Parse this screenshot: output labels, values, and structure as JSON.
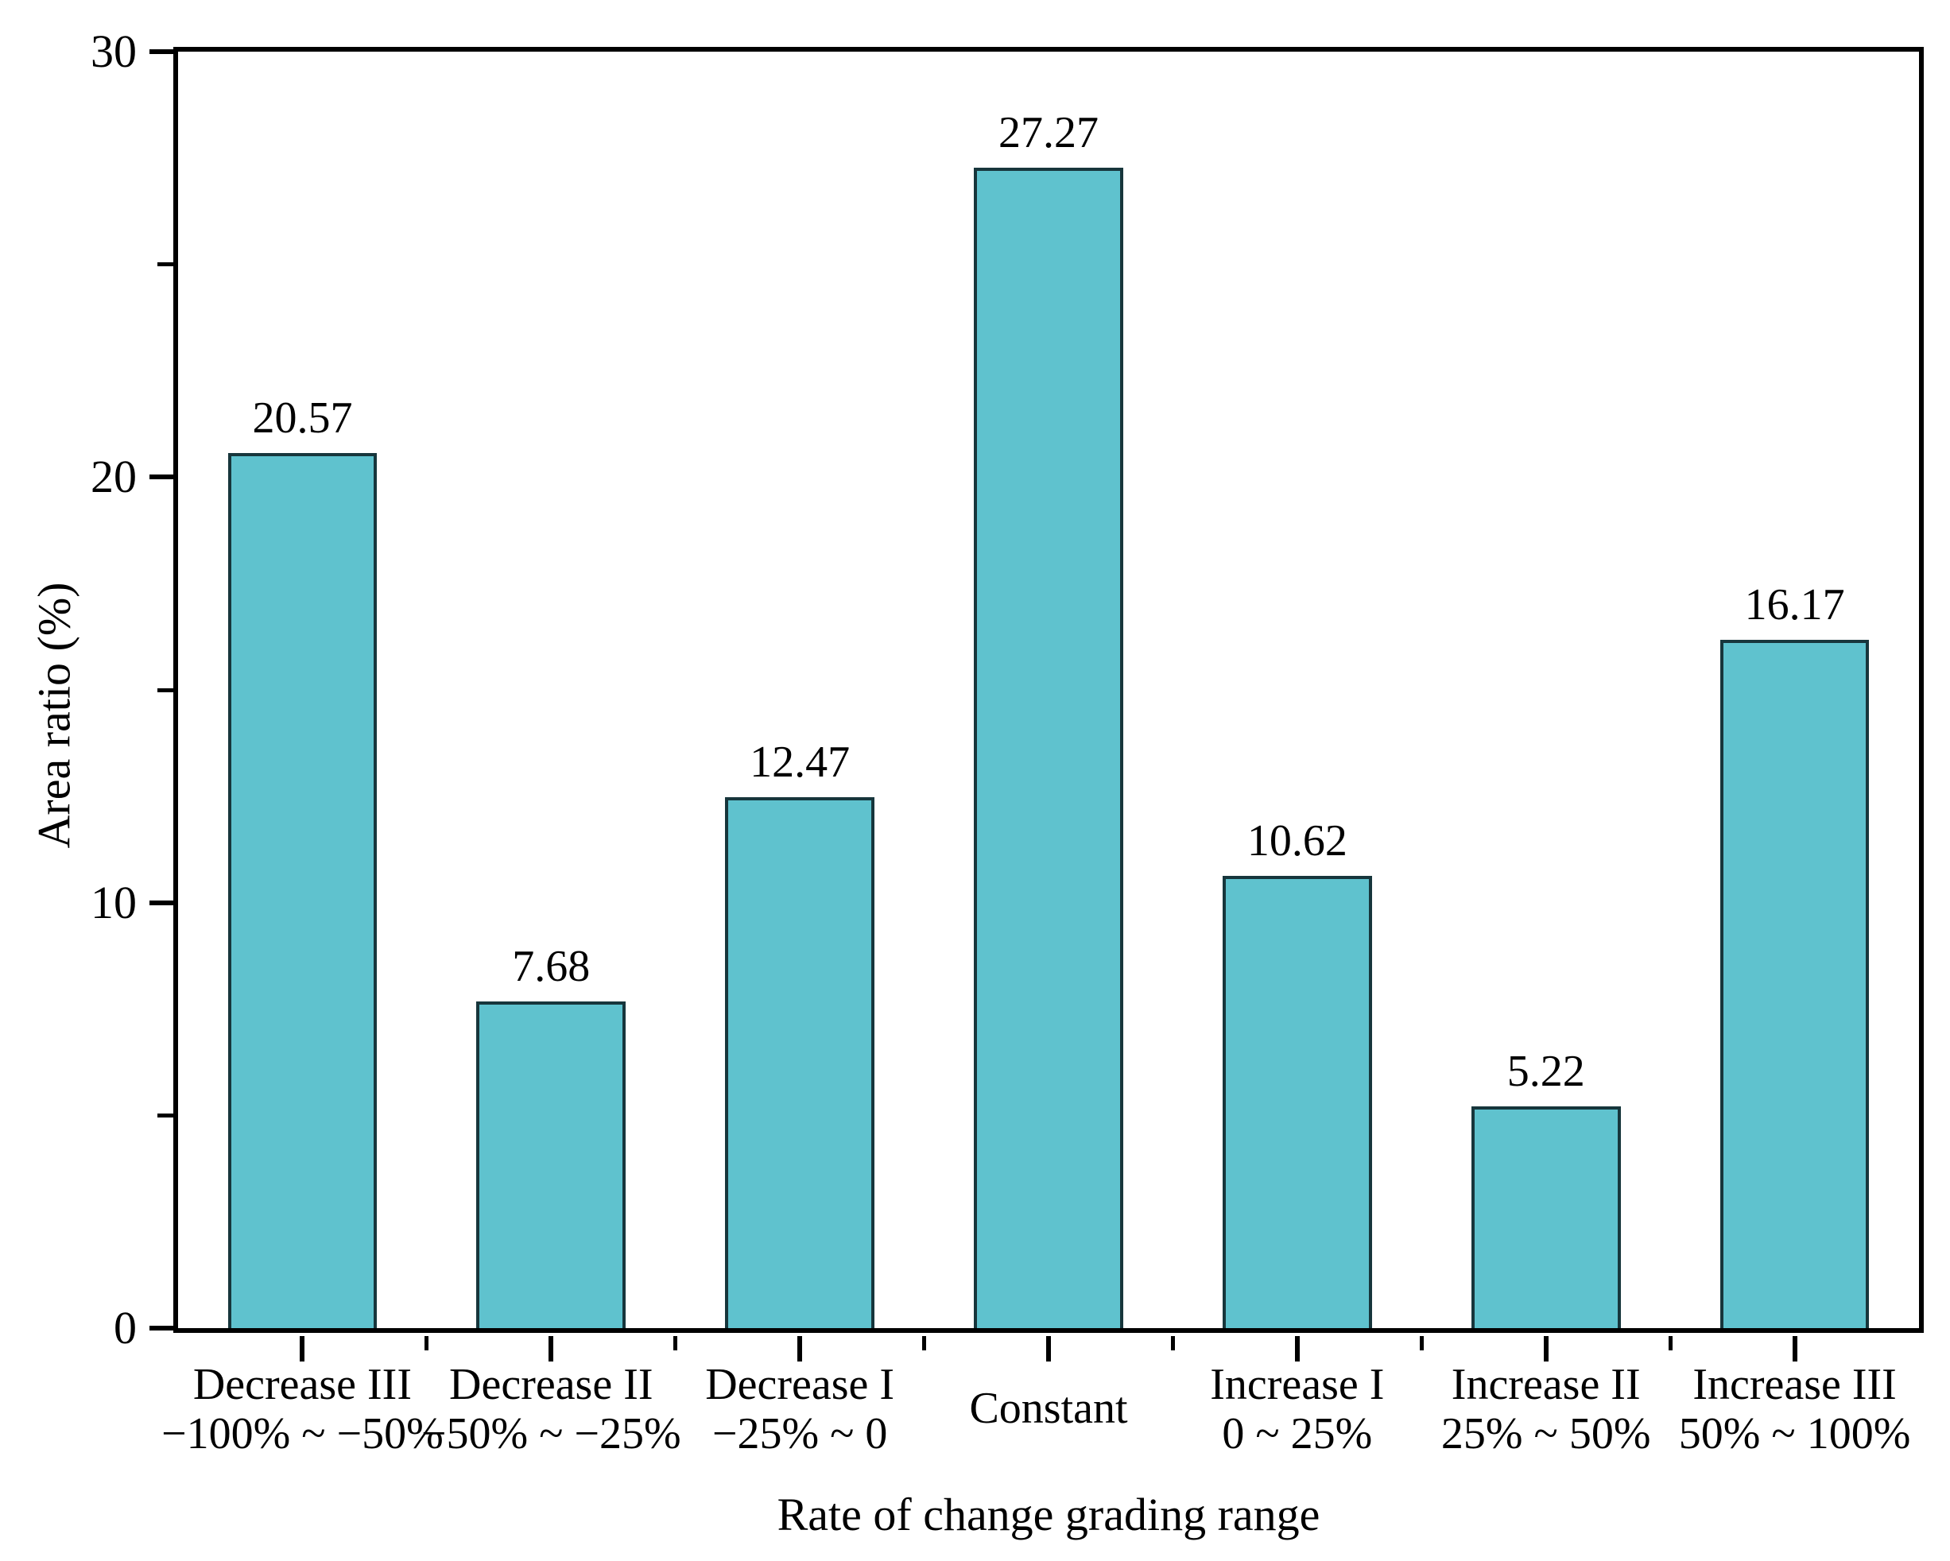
{
  "chart_data": {
    "type": "bar",
    "title": "",
    "xlabel": "Rate of change grading range",
    "ylabel": "Area ratio (%)",
    "ylim": [
      0,
      30
    ],
    "y_major_ticks": [
      0,
      10,
      20,
      30
    ],
    "y_minor_ticks": [
      5,
      15,
      25
    ],
    "grid": false,
    "legend": null,
    "bar_color": "#5fc2ce",
    "bar_edge_color": "#17363c",
    "axis_color": "#000000",
    "categories": [
      {
        "label": "Decrease III",
        "range": "−100% ~ −50%"
      },
      {
        "label": "Decrease II",
        "range": "−50% ~ −25%"
      },
      {
        "label": "Decrease I",
        "range": "−25% ~ 0"
      },
      {
        "label": "Constant",
        "range": ""
      },
      {
        "label": "Increase I",
        "range": "0 ~ 25%"
      },
      {
        "label": "Increase II",
        "range": "25% ~ 50%"
      },
      {
        "label": "Increase III",
        "range": "50% ~ 100%"
      }
    ],
    "values": [
      20.57,
      7.68,
      12.47,
      27.27,
      10.62,
      5.22,
      16.17
    ],
    "value_labels": [
      "20.57",
      "7.68",
      "12.47",
      "27.27",
      "10.62",
      "5.22",
      "16.17"
    ]
  }
}
